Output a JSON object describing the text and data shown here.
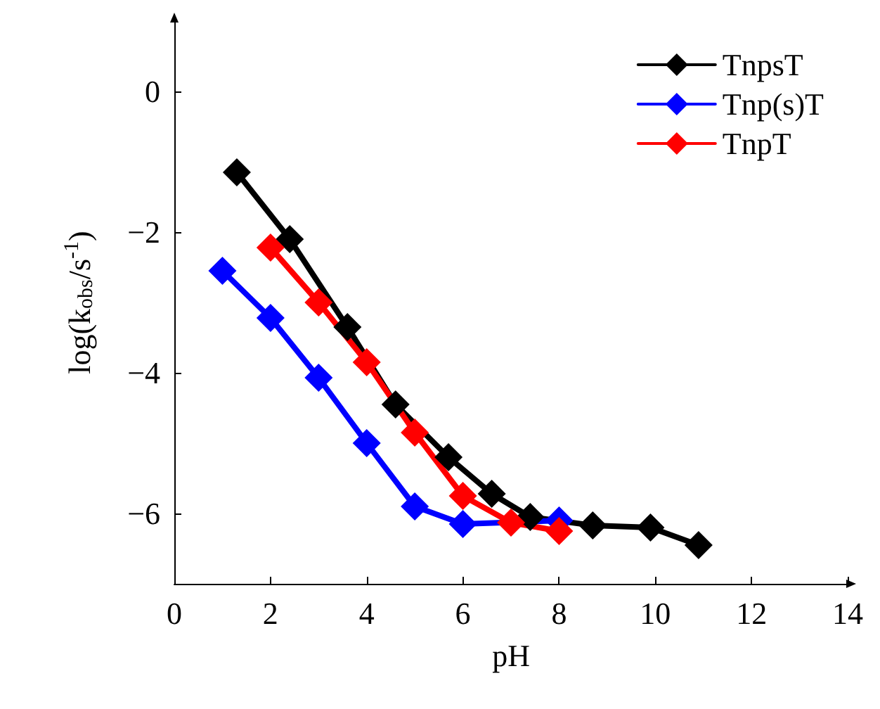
{
  "chart_data": {
    "type": "line",
    "xlabel": "pH",
    "ylabel": "log(k$_{obs}$/s$^{-1}$)",
    "xlim": [
      0,
      14
    ],
    "xticks": [
      0,
      2,
      4,
      6,
      8,
      10,
      12,
      14
    ],
    "ylim": [
      -7,
      1
    ],
    "yticks": [
      -6,
      -4,
      -2,
      0
    ],
    "grid": false,
    "legend": "top right",
    "marker": "diamond",
    "line_style": "solid",
    "series": [
      {
        "name": "TnpsT",
        "color": "#000000",
        "x": [
          1.3,
          2.4,
          3.6,
          4.6,
          5.7,
          6.6,
          7.4,
          8.7,
          9.9,
          10.9
        ],
        "values": [
          -1.15,
          -2.1,
          -3.35,
          -4.45,
          -5.2,
          -5.72,
          -6.05,
          -6.17,
          -6.2,
          -6.45
        ]
      },
      {
        "name": "Tnp(s)T",
        "color": "#0000ff",
        "x": [
          1,
          2,
          3,
          4,
          5,
          6,
          7,
          8
        ],
        "values": [
          -2.55,
          -3.22,
          -4.07,
          -5.0,
          -5.9,
          -6.15,
          null,
          -6.1
        ]
      },
      {
        "name": "TnpT",
        "color": "#ff0000",
        "x": [
          2,
          3,
          4,
          5,
          6,
          7,
          8
        ],
        "values": [
          -2.22,
          -3.0,
          -3.85,
          -4.85,
          -5.75,
          -6.13,
          -6.25
        ]
      }
    ]
  }
}
